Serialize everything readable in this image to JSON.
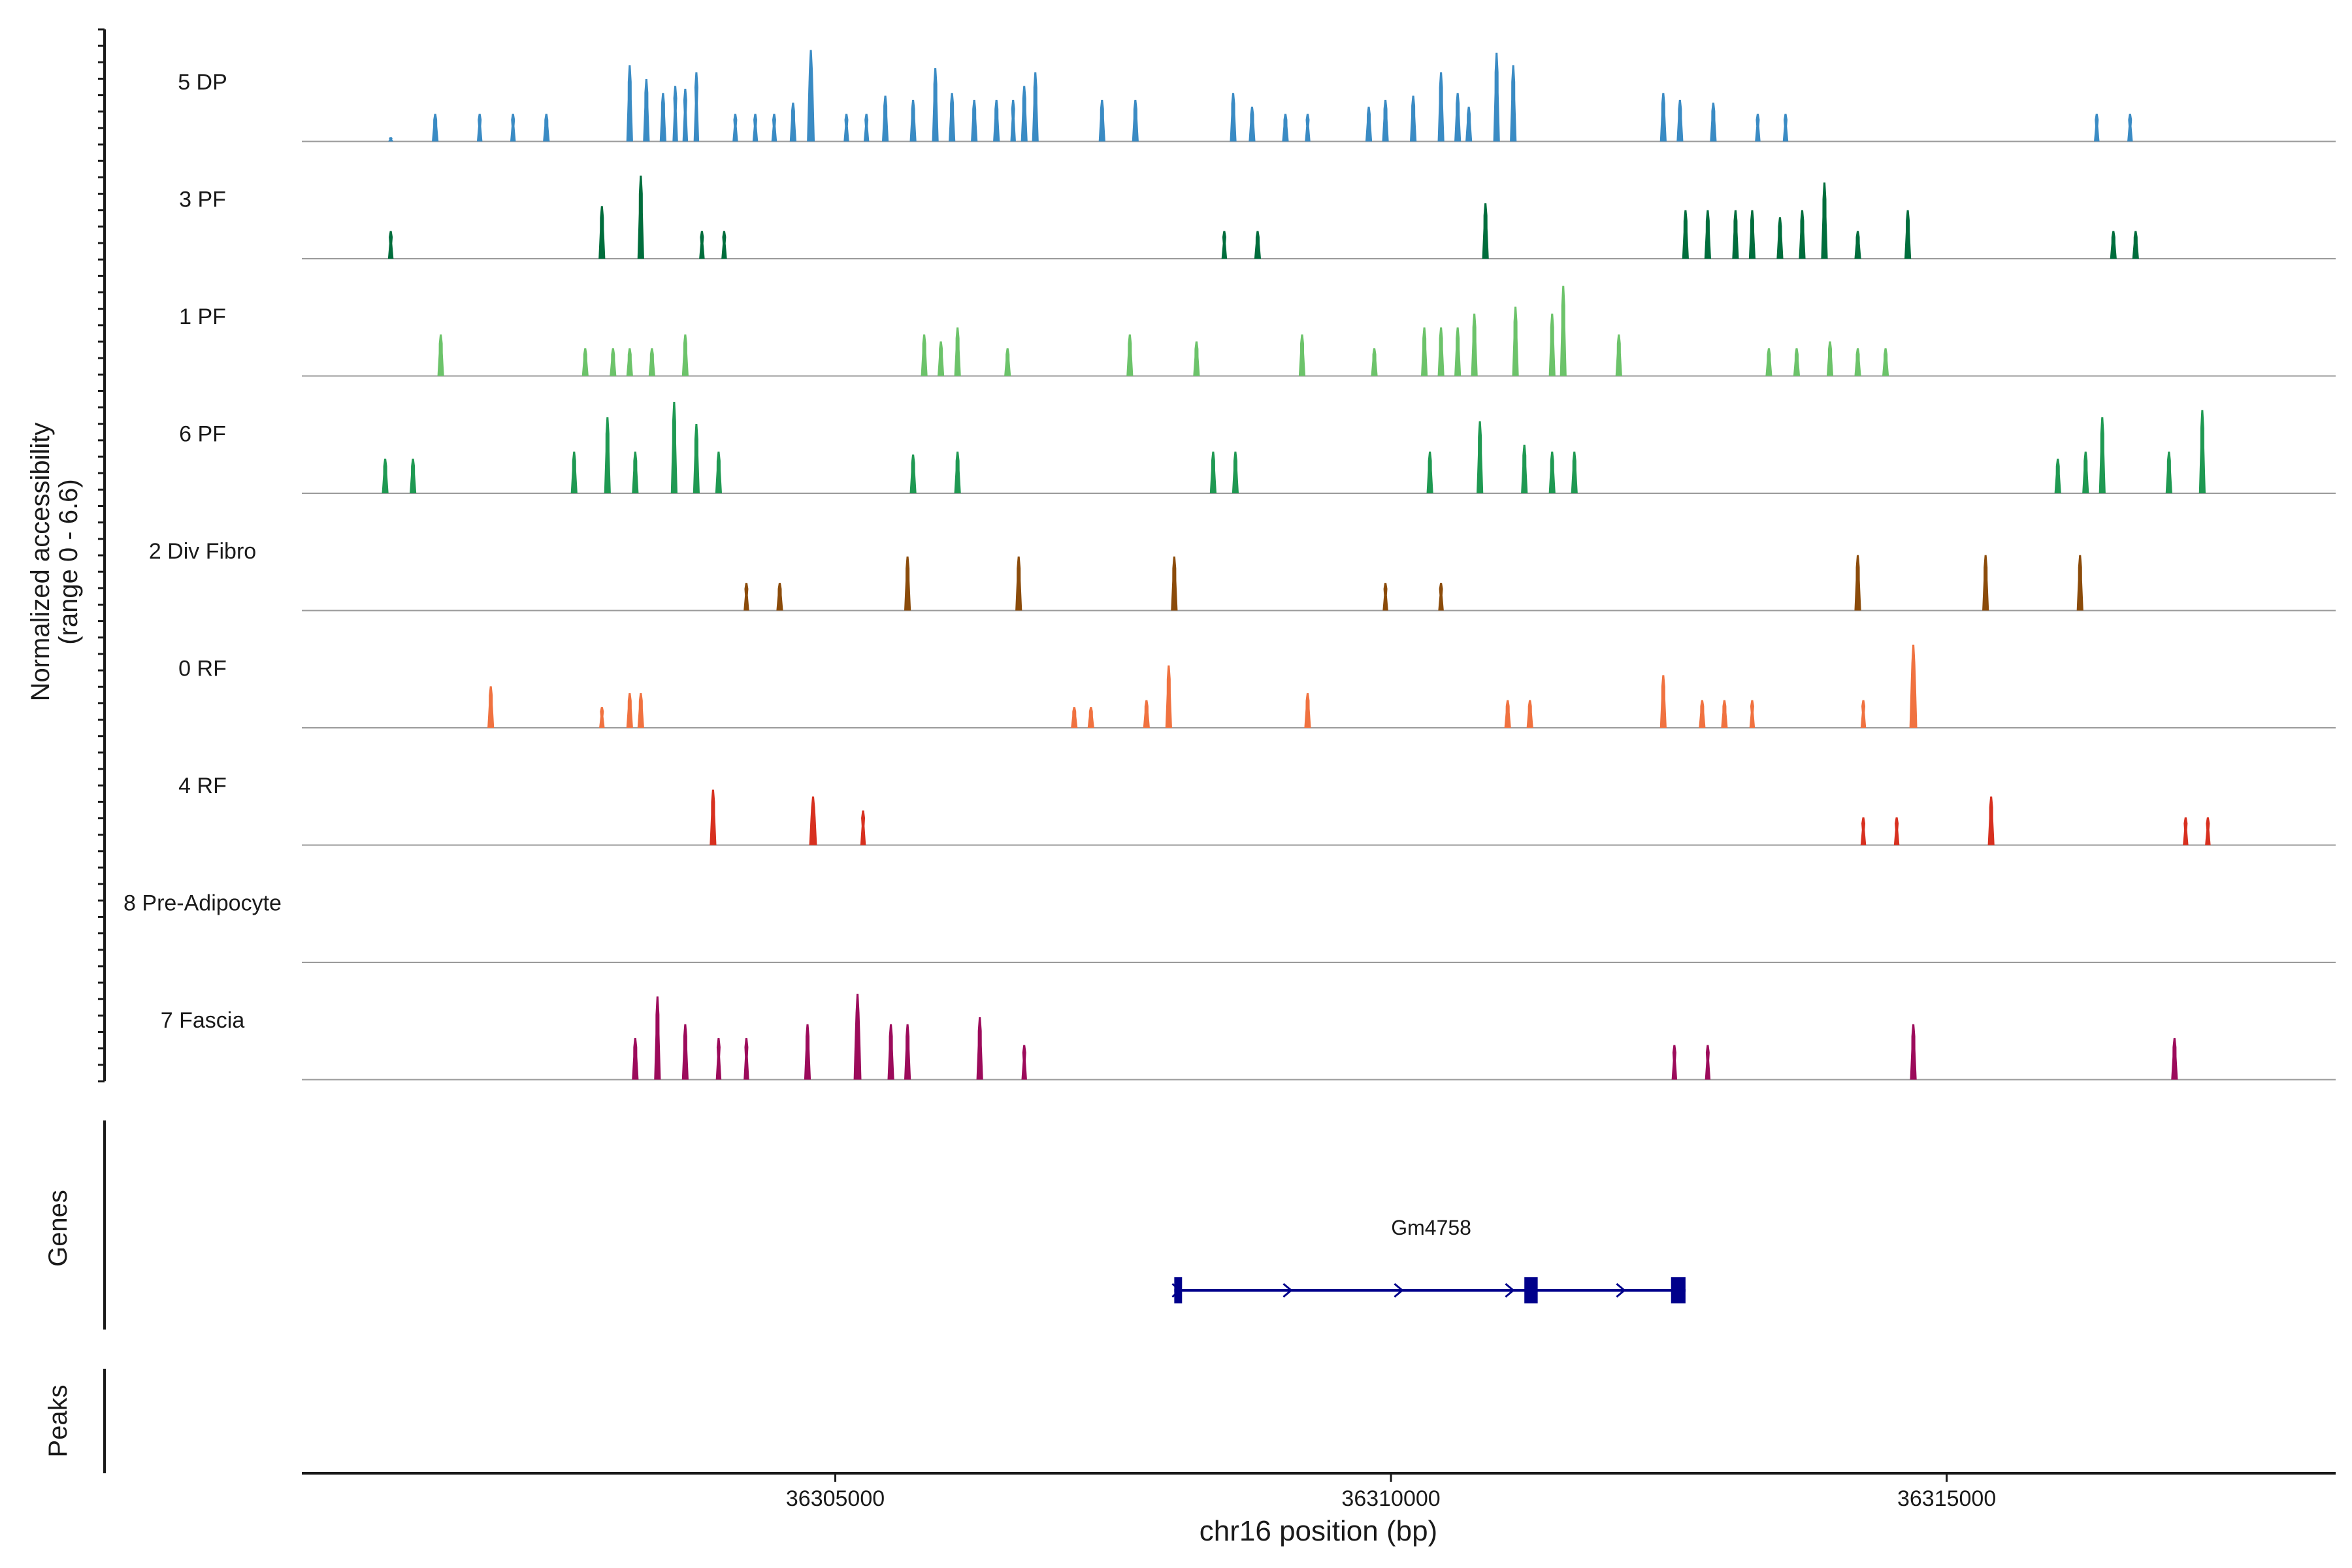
{
  "chart_data": {
    "type": "area",
    "title": "",
    "xlabel": "chr16 position (bp)",
    "ylabel_lines": [
      "Normalized accessibility",
      "(range 0 - 6.6)"
    ],
    "ylim": [
      0,
      6.6
    ],
    "xlim": [
      36300200,
      36318500
    ],
    "xticks": [
      {
        "value": 36305000,
        "label": "36305000"
      },
      {
        "value": 36310000,
        "label": "36310000"
      },
      {
        "value": 36315000,
        "label": "36315000"
      }
    ],
    "genes_label": "Genes",
    "peaks_label": "Peaks",
    "genes": [
      {
        "name": "Gm4758",
        "strand": "+",
        "start": 36308050,
        "end": 36312650,
        "exons": [
          [
            36308050,
            36308120
          ],
          [
            36311200,
            36311320
          ],
          [
            36312520,
            36312650
          ]
        ],
        "color": "#00008b"
      }
    ],
    "series": [
      {
        "name": "5 DP",
        "color": "#3a8bc4",
        "peaks": [
          [
            36301000,
            30,
            0.3
          ],
          [
            36301400,
            60,
            2.0
          ],
          [
            36301800,
            50,
            2.0
          ],
          [
            36302100,
            50,
            2.0
          ],
          [
            36302400,
            60,
            2.0
          ],
          [
            36303150,
            60,
            5.5
          ],
          [
            36303300,
            60,
            4.5
          ],
          [
            36303450,
            60,
            3.5
          ],
          [
            36303560,
            50,
            4.0
          ],
          [
            36303650,
            50,
            3.8
          ],
          [
            36303750,
            50,
            5.0
          ],
          [
            36304100,
            50,
            2.0
          ],
          [
            36304280,
            50,
            2.0
          ],
          [
            36304450,
            50,
            2.0
          ],
          [
            36304620,
            60,
            2.8
          ],
          [
            36304780,
            70,
            6.6
          ],
          [
            36305100,
            50,
            2.0
          ],
          [
            36305280,
            50,
            2.0
          ],
          [
            36305450,
            60,
            3.3
          ],
          [
            36305700,
            60,
            3.0
          ],
          [
            36305900,
            60,
            5.3
          ],
          [
            36306050,
            60,
            3.5
          ],
          [
            36306250,
            60,
            3.0
          ],
          [
            36306450,
            60,
            3.0
          ],
          [
            36306600,
            50,
            3.0
          ],
          [
            36306700,
            60,
            4.0
          ],
          [
            36306800,
            60,
            5.0
          ],
          [
            36307400,
            60,
            3.0
          ],
          [
            36307700,
            60,
            3.0
          ],
          [
            36308580,
            60,
            3.5
          ],
          [
            36308750,
            60,
            2.5
          ],
          [
            36309050,
            60,
            2.0
          ],
          [
            36309250,
            50,
            2.0
          ],
          [
            36309800,
            60,
            2.5
          ],
          [
            36309950,
            60,
            3.0
          ],
          [
            36310200,
            60,
            3.3
          ],
          [
            36310450,
            60,
            5.0
          ],
          [
            36310600,
            60,
            3.5
          ],
          [
            36310700,
            60,
            2.5
          ],
          [
            36310950,
            60,
            6.4
          ],
          [
            36311100,
            60,
            5.5
          ],
          [
            36312450,
            60,
            3.5
          ],
          [
            36312600,
            60,
            3.0
          ],
          [
            36312900,
            60,
            2.8
          ],
          [
            36313300,
            50,
            2.0
          ],
          [
            36313550,
            50,
            2.0
          ],
          [
            36316350,
            50,
            2.0
          ],
          [
            36316650,
            50,
            2.0
          ]
        ]
      },
      {
        "name": "3 PF",
        "color": "#006d3c",
        "peaks": [
          [
            36301000,
            50,
            2.0
          ],
          [
            36302900,
            60,
            3.8
          ],
          [
            36303250,
            60,
            6.0
          ],
          [
            36303800,
            50,
            2.0
          ],
          [
            36304000,
            50,
            2.0
          ],
          [
            36308500,
            50,
            2.0
          ],
          [
            36308800,
            60,
            2.0
          ],
          [
            36310850,
            60,
            4.0
          ],
          [
            36312650,
            60,
            3.5
          ],
          [
            36312850,
            60,
            3.5
          ],
          [
            36313100,
            60,
            3.5
          ],
          [
            36313250,
            60,
            3.5
          ],
          [
            36313500,
            60,
            3.0
          ],
          [
            36313700,
            60,
            3.5
          ],
          [
            36313900,
            60,
            5.5
          ],
          [
            36314200,
            60,
            2.0
          ],
          [
            36314650,
            60,
            3.5
          ],
          [
            36316500,
            60,
            2.0
          ],
          [
            36316700,
            60,
            2.0
          ]
        ]
      },
      {
        "name": "1 PF",
        "color": "#6cc36a",
        "peaks": [
          [
            36301450,
            60,
            3.0
          ],
          [
            36302750,
            60,
            2.0
          ],
          [
            36303000,
            60,
            2.0
          ],
          [
            36303150,
            60,
            2.0
          ],
          [
            36303350,
            60,
            2.0
          ],
          [
            36303650,
            60,
            3.0
          ],
          [
            36305800,
            60,
            3.0
          ],
          [
            36305950,
            60,
            2.5
          ],
          [
            36306100,
            60,
            3.5
          ],
          [
            36306550,
            60,
            2.0
          ],
          [
            36307650,
            60,
            3.0
          ],
          [
            36308250,
            60,
            2.5
          ],
          [
            36309200,
            60,
            3.0
          ],
          [
            36309850,
            60,
            2.0
          ],
          [
            36310300,
            60,
            3.5
          ],
          [
            36310450,
            60,
            3.5
          ],
          [
            36310600,
            60,
            3.5
          ],
          [
            36310750,
            60,
            4.5
          ],
          [
            36311120,
            60,
            5.0
          ],
          [
            36311450,
            60,
            4.5
          ],
          [
            36311550,
            60,
            6.5
          ],
          [
            36312050,
            60,
            3.0
          ],
          [
            36313400,
            60,
            2.0
          ],
          [
            36313650,
            60,
            2.0
          ],
          [
            36313950,
            60,
            2.5
          ],
          [
            36314200,
            60,
            2.0
          ],
          [
            36314450,
            60,
            2.0
          ]
        ]
      },
      {
        "name": "6 PF",
        "color": "#1f9952",
        "peaks": [
          [
            36300950,
            60,
            2.5
          ],
          [
            36301200,
            60,
            2.5
          ],
          [
            36302650,
            60,
            3.0
          ],
          [
            36302950,
            60,
            5.5
          ],
          [
            36303200,
            60,
            3.0
          ],
          [
            36303550,
            60,
            6.6
          ],
          [
            36303750,
            60,
            5.0
          ],
          [
            36303950,
            60,
            3.0
          ],
          [
            36305700,
            60,
            2.8
          ],
          [
            36306100,
            60,
            3.0
          ],
          [
            36308400,
            60,
            3.0
          ],
          [
            36308600,
            60,
            3.0
          ],
          [
            36310350,
            60,
            3.0
          ],
          [
            36310800,
            60,
            5.2
          ],
          [
            36311200,
            60,
            3.5
          ],
          [
            36311450,
            60,
            3.0
          ],
          [
            36311650,
            60,
            3.0
          ],
          [
            36316000,
            60,
            2.5
          ],
          [
            36316250,
            60,
            3.0
          ],
          [
            36316400,
            60,
            5.5
          ],
          [
            36317000,
            60,
            3.0
          ],
          [
            36317300,
            60,
            6.0
          ]
        ]
      },
      {
        "name": "2 Div Fibro",
        "color": "#8b4b0a",
        "peaks": [
          [
            36304200,
            50,
            2.0
          ],
          [
            36304500,
            60,
            2.0
          ],
          [
            36305650,
            60,
            3.9
          ],
          [
            36306650,
            60,
            3.9
          ],
          [
            36308050,
            60,
            3.9
          ],
          [
            36309950,
            50,
            2.0
          ],
          [
            36310450,
            50,
            2.0
          ],
          [
            36314200,
            60,
            4.0
          ],
          [
            36315350,
            60,
            4.0
          ],
          [
            36316200,
            60,
            4.0
          ]
        ]
      },
      {
        "name": "0 RF",
        "color": "#f07240",
        "peaks": [
          [
            36301900,
            60,
            3.0
          ],
          [
            36302900,
            50,
            1.5
          ],
          [
            36303150,
            60,
            2.5
          ],
          [
            36303250,
            60,
            2.5
          ],
          [
            36307150,
            60,
            1.5
          ],
          [
            36307300,
            60,
            1.5
          ],
          [
            36307800,
            60,
            2.0
          ],
          [
            36308000,
            60,
            4.5
          ],
          [
            36309250,
            60,
            2.5
          ],
          [
            36311050,
            60,
            2.0
          ],
          [
            36311250,
            60,
            2.0
          ],
          [
            36312450,
            60,
            3.8
          ],
          [
            36312800,
            60,
            2.0
          ],
          [
            36313000,
            60,
            2.0
          ],
          [
            36313250,
            50,
            2.0
          ],
          [
            36314250,
            50,
            2.0
          ],
          [
            36314700,
            70,
            6.0
          ]
        ]
      },
      {
        "name": "4 RF",
        "color": "#d7301f",
        "peaks": [
          [
            36303900,
            60,
            4.0
          ],
          [
            36304800,
            70,
            3.5
          ],
          [
            36305250,
            50,
            2.5
          ],
          [
            36314250,
            50,
            2.0
          ],
          [
            36314550,
            50,
            2.0
          ],
          [
            36315400,
            60,
            3.5
          ],
          [
            36317150,
            50,
            2.0
          ],
          [
            36317350,
            50,
            2.0
          ]
        ]
      },
      {
        "name": "8 Pre-Adipocyte",
        "color": "#7a3b8f",
        "peaks": []
      },
      {
        "name": "7 Fascia",
        "color": "#9c0b5b",
        "peaks": [
          [
            36303200,
            60,
            3.0
          ],
          [
            36303400,
            60,
            6.0
          ],
          [
            36303650,
            60,
            4.0
          ],
          [
            36303950,
            50,
            3.0
          ],
          [
            36304200,
            50,
            3.0
          ],
          [
            36304750,
            60,
            4.0
          ],
          [
            36305200,
            70,
            6.2
          ],
          [
            36305500,
            60,
            4.0
          ],
          [
            36305650,
            60,
            4.0
          ],
          [
            36306300,
            60,
            4.5
          ],
          [
            36306700,
            50,
            2.5
          ],
          [
            36312550,
            50,
            2.5
          ],
          [
            36312850,
            50,
            2.5
          ],
          [
            36314700,
            60,
            4.0
          ],
          [
            36317050,
            60,
            3.0
          ]
        ]
      }
    ]
  }
}
